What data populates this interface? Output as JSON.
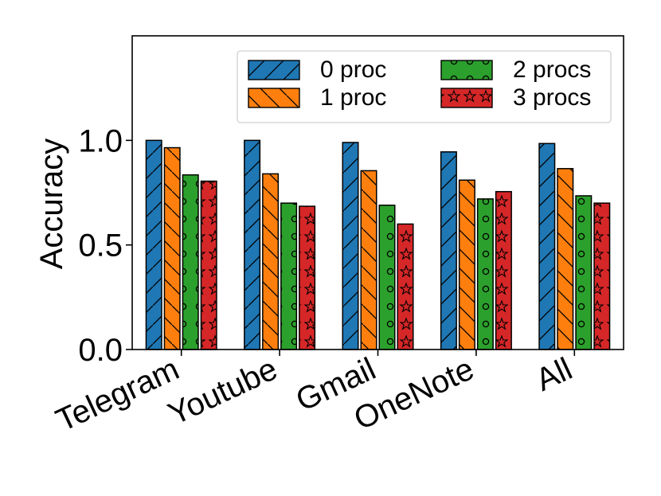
{
  "chart_data": {
    "type": "bar",
    "title": "",
    "xlabel": "",
    "ylabel": "Accuracy",
    "ylim": [
      0,
      1.5
    ],
    "yticks": [
      0.0,
      0.5,
      1.0
    ],
    "ytick_labels": [
      "0.0",
      "0.5",
      "1.0"
    ],
    "categories": [
      "Telegram",
      "Youtube",
      "Gmail",
      "OneNote",
      "All"
    ],
    "legend_position": "top-right",
    "series": [
      {
        "name": "0 proc",
        "color": "#1f77b4",
        "hatch": "diagonal-forward",
        "values": [
          1.0,
          1.0,
          0.99,
          0.945,
          0.985
        ]
      },
      {
        "name": "1 proc",
        "color": "#ff7f0e",
        "hatch": "diagonal-back",
        "values": [
          0.965,
          0.84,
          0.855,
          0.81,
          0.865
        ]
      },
      {
        "name": "2 procs",
        "color": "#2ca02c",
        "hatch": "circles",
        "values": [
          0.835,
          0.7,
          0.69,
          0.72,
          0.735
        ]
      },
      {
        "name": "3 procs",
        "color": "#d62728",
        "hatch": "stars",
        "values": [
          0.805,
          0.685,
          0.6,
          0.755,
          0.7
        ]
      }
    ]
  }
}
